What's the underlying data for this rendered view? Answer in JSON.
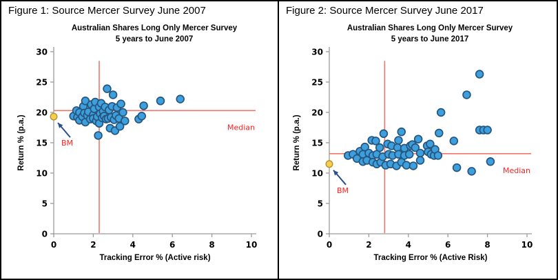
{
  "chart_data": [
    {
      "type": "scatter",
      "figure_caption": "Figure 1: Source Mercer Survey June 2007",
      "title": "Australian Shares Long Only Mercer Survey",
      "subtitle": "5 years to June 2007",
      "xlabel": "Tracking Error % (Active risk)",
      "ylabel": "Return % (p.a.)",
      "xlim": [
        0,
        10
      ],
      "ylim": [
        0,
        30
      ],
      "xticks": [
        0,
        2,
        4,
        6,
        8,
        10
      ],
      "yticks": [
        0,
        5,
        10,
        15,
        20,
        25,
        30
      ],
      "grid": false,
      "legend": "none",
      "median_label": "Median",
      "bm_label": "BM",
      "median_return": 20.3,
      "median_tracking_error": 2.3,
      "benchmark": {
        "x": 0,
        "y": 19.3
      },
      "points": [
        [
          1.0,
          19.4
        ],
        [
          1.15,
          20.3
        ],
        [
          1.2,
          19.2
        ],
        [
          1.3,
          20.0
        ],
        [
          1.3,
          18.7
        ],
        [
          1.45,
          19.3
        ],
        [
          1.5,
          21.0
        ],
        [
          1.55,
          19.9
        ],
        [
          1.6,
          18.4
        ],
        [
          1.6,
          21.9
        ],
        [
          1.7,
          19.5
        ],
        [
          1.75,
          20.1
        ],
        [
          1.85,
          18.9
        ],
        [
          1.9,
          21.3
        ],
        [
          2.0,
          19.6
        ],
        [
          2.0,
          19.0
        ],
        [
          2.05,
          20.6
        ],
        [
          2.1,
          21.7
        ],
        [
          2.15,
          18.6
        ],
        [
          2.2,
          19.3
        ],
        [
          2.25,
          16.2
        ],
        [
          2.3,
          20.9
        ],
        [
          2.3,
          18.2
        ],
        [
          2.35,
          19.8
        ],
        [
          2.4,
          21.5
        ],
        [
          2.45,
          19.1
        ],
        [
          2.5,
          20.2
        ],
        [
          2.55,
          19.4
        ],
        [
          2.6,
          20.9
        ],
        [
          2.65,
          18.9
        ],
        [
          2.7,
          23.9
        ],
        [
          2.75,
          19.0
        ],
        [
          2.8,
          20.4
        ],
        [
          2.85,
          17.4
        ],
        [
          2.9,
          19.2
        ],
        [
          2.95,
          21.0
        ],
        [
          3.0,
          22.9
        ],
        [
          3.05,
          18.8
        ],
        [
          3.1,
          17.0
        ],
        [
          3.15,
          19.5
        ],
        [
          3.2,
          20.8
        ],
        [
          3.3,
          19.0
        ],
        [
          3.35,
          17.7
        ],
        [
          3.4,
          21.4
        ],
        [
          3.5,
          20.0
        ],
        [
          3.6,
          18.6
        ],
        [
          4.3,
          18.9
        ],
        [
          4.45,
          19.4
        ],
        [
          4.55,
          21.1
        ],
        [
          5.4,
          21.9
        ],
        [
          6.4,
          22.2
        ]
      ]
    },
    {
      "type": "scatter",
      "figure_caption": "Figure 2: Source Mercer Survey June 2017",
      "title": "Australian Shares Long Only Mercer Survey",
      "subtitle": "5 years to June 2017",
      "xlabel": "Tracking Error % (Active Risk)",
      "ylabel": "Return % (p.a.)",
      "xlim": [
        0,
        10
      ],
      "ylim": [
        0,
        30
      ],
      "xticks": [
        0,
        2,
        4,
        6,
        8,
        10
      ],
      "yticks": [
        0,
        5,
        10,
        15,
        20,
        25,
        30
      ],
      "grid": false,
      "legend": "none",
      "median_label": "Median",
      "bm_label": "BM",
      "median_return": 13.2,
      "median_tracking_error": 2.8,
      "benchmark": {
        "x": 0,
        "y": 11.5
      },
      "points": [
        [
          0.95,
          12.9
        ],
        [
          1.2,
          13.1
        ],
        [
          1.4,
          12.4
        ],
        [
          1.55,
          13.6
        ],
        [
          1.7,
          13.1
        ],
        [
          1.7,
          11.9
        ],
        [
          1.8,
          14.3
        ],
        [
          1.9,
          12.1
        ],
        [
          2.0,
          13.3
        ],
        [
          2.15,
          15.4
        ],
        [
          2.2,
          12.9
        ],
        [
          2.2,
          11.8
        ],
        [
          2.35,
          15.3
        ],
        [
          2.4,
          13.1
        ],
        [
          2.4,
          11.5
        ],
        [
          2.55,
          14.2
        ],
        [
          2.6,
          11.8
        ],
        [
          2.7,
          12.7
        ],
        [
          2.75,
          16.5
        ],
        [
          2.85,
          11.3
        ],
        [
          2.95,
          14.8
        ],
        [
          3.0,
          13.1
        ],
        [
          3.1,
          11.5
        ],
        [
          3.15,
          14.5
        ],
        [
          3.2,
          12.9
        ],
        [
          3.4,
          11.2
        ],
        [
          3.45,
          14.2
        ],
        [
          3.5,
          15.4
        ],
        [
          3.5,
          13.1
        ],
        [
          3.65,
          16.8
        ],
        [
          3.65,
          11.8
        ],
        [
          3.8,
          14.1
        ],
        [
          3.8,
          12.9
        ],
        [
          3.9,
          11.3
        ],
        [
          4.05,
          13.1
        ],
        [
          4.1,
          14.5
        ],
        [
          4.2,
          14.7
        ],
        [
          4.25,
          11.2
        ],
        [
          4.35,
          14.2
        ],
        [
          4.5,
          15.6
        ],
        [
          4.6,
          13.3
        ],
        [
          4.6,
          12.1
        ],
        [
          4.95,
          14.5
        ],
        [
          5.0,
          13.5
        ],
        [
          5.1,
          14.8
        ],
        [
          5.15,
          13.1
        ],
        [
          5.3,
          12.9
        ],
        [
          5.35,
          13.9
        ],
        [
          5.5,
          12.9
        ],
        [
          5.55,
          16.6
        ],
        [
          5.65,
          20.0
        ],
        [
          6.3,
          15.3
        ],
        [
          6.45,
          10.9
        ],
        [
          6.95,
          22.9
        ],
        [
          7.2,
          10.3
        ],
        [
          7.6,
          26.3
        ],
        [
          7.6,
          17.1
        ],
        [
          7.8,
          17.1
        ],
        [
          8.0,
          17.1
        ],
        [
          8.15,
          11.9
        ]
      ]
    }
  ],
  "colors": {
    "point_fill": "#3DA0DC",
    "point_stroke": "#26557F",
    "benchmark_fill": "#F8CE4F",
    "benchmark_stroke": "#B3922F",
    "reference_line": "#F2756B",
    "annotation_text": "#FF1F1F",
    "arrow": "#2B4E8C",
    "axis": "#9B9B9B",
    "text": "#000000"
  }
}
